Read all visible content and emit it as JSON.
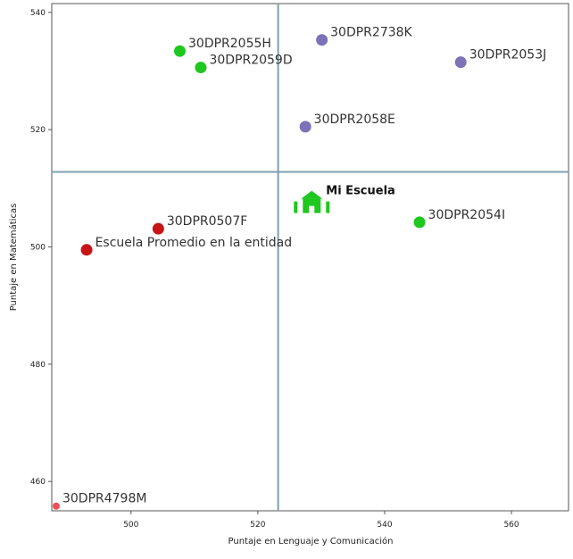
{
  "chart_data": {
    "type": "scatter",
    "xlabel": "Puntaje en Lenguaje y Comunicación",
    "ylabel": "Puntaje en Matemáticas",
    "xlim": [
      487.5,
      569
    ],
    "ylim": [
      455,
      541.5
    ],
    "xticks": [
      500,
      520,
      540,
      560
    ],
    "yticks": [
      460,
      480,
      500,
      520,
      540
    ],
    "grid": false,
    "reference_lines": {
      "x": 523.2,
      "y": 512.8,
      "color": "#7f9fb0"
    },
    "colors": {
      "green": "#1ec81e",
      "purple": "#7b72b8",
      "red": "#c81414",
      "light_red": "#ef4f58",
      "school_icon": "#1ec81e"
    },
    "points": [
      {
        "label": "30DPR2055H",
        "x": 507.7,
        "y": 533.4,
        "color": "#1ec81e",
        "size": "large"
      },
      {
        "label": "30DPR2059D",
        "x": 511.0,
        "y": 530.6,
        "color": "#1ec81e",
        "size": "large"
      },
      {
        "label": "30DPR2738K",
        "x": 530.1,
        "y": 535.3,
        "color": "#7b72b8",
        "size": "large"
      },
      {
        "label": "30DPR2053J",
        "x": 552.0,
        "y": 531.5,
        "color": "#7b72b8",
        "size": "large"
      },
      {
        "label": "30DPR2058E",
        "x": 527.5,
        "y": 520.5,
        "color": "#7b72b8",
        "size": "large"
      },
      {
        "label": "30DPR2054I",
        "x": 545.5,
        "y": 504.2,
        "color": "#1ec81e",
        "size": "large"
      },
      {
        "label": "30DPR0507F",
        "x": 504.3,
        "y": 503.1,
        "color": "#c81414",
        "size": "large"
      },
      {
        "label": "Escuela Promedio en la entidad",
        "x": 493.0,
        "y": 499.5,
        "color": "#c81414",
        "size": "large"
      },
      {
        "label": "30DPR4798M",
        "x": 488.2,
        "y": 455.8,
        "color": "#ef4f58",
        "size": "small"
      }
    ],
    "school": {
      "label": "Mi Escuela",
      "x": 528.5,
      "y": 507.3,
      "icon": "school-icon"
    }
  }
}
